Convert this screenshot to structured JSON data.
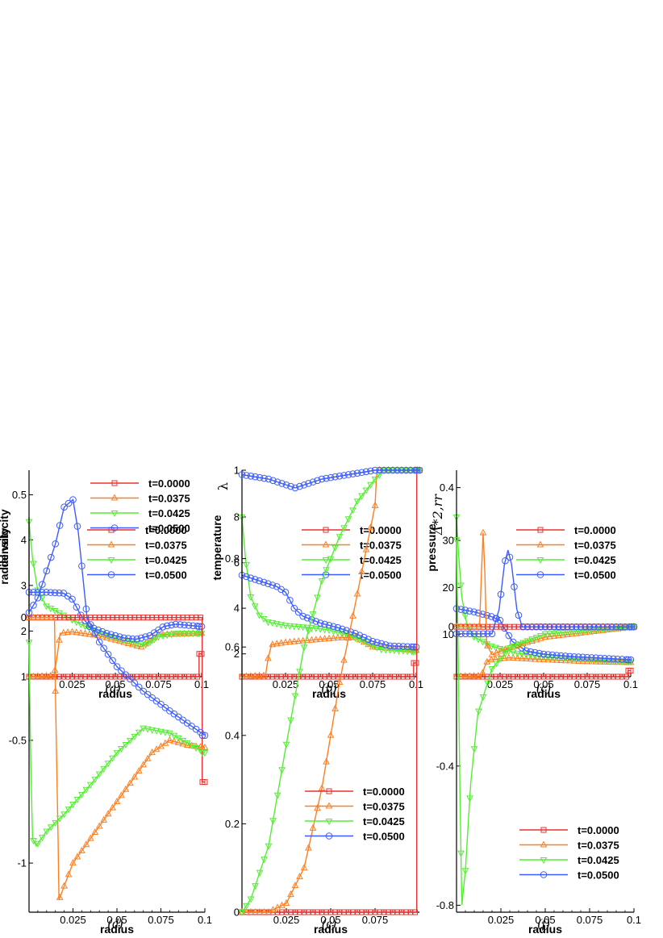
{
  "colors": {
    "t0": "#e8322f",
    "t1": "#ff7f1f",
    "t2": "#55ee33",
    "t3": "#3d5cff"
  },
  "chart_data": [
    {
      "panel": "a",
      "type": "line",
      "caption": "(a)",
      "xlabel": "radius",
      "ylabel": "density",
      "xlim": [
        0,
        0.1
      ],
      "ylim": [
        1,
        4.5
      ],
      "xticks": [
        0.025,
        0.05,
        0.075,
        0.1
      ],
      "xtick_labels": [
        "0.025",
        "0.05",
        "0.075",
        "0.1"
      ],
      "yticks": [
        1,
        2,
        3,
        4
      ],
      "ytick_labels": [
        "1",
        "2",
        "3",
        "4"
      ],
      "legend": {
        "position": "top-right",
        "entries": [
          "t=0.0000",
          "t=0.0375",
          "t=0.0425",
          "t=0.0500"
        ]
      },
      "series": [
        {
          "name": "t=0.0000",
          "marker": "square",
          "x": [
            0,
            0.0985,
            0.0985,
            0.1
          ],
          "y": [
            1,
            1,
            1.5,
            1.5
          ]
        },
        {
          "name": "t=0.0375",
          "marker": "triangle-up",
          "x": [
            0,
            0.0145,
            0.0165,
            0.018,
            0.025,
            0.04,
            0.05,
            0.065,
            0.075,
            0.1
          ],
          "y": [
            1,
            1.02,
            1.5,
            1.95,
            1.98,
            1.9,
            1.8,
            1.65,
            1.92,
            1.95
          ]
        },
        {
          "name": "t=0.0425",
          "marker": "triangle-down",
          "x": [
            0,
            0.002,
            0.005,
            0.01,
            0.02,
            0.03,
            0.04,
            0.05,
            0.06,
            0.068,
            0.075,
            0.085,
            0.1
          ],
          "y": [
            4.4,
            3.6,
            2.9,
            2.55,
            2.35,
            2.15,
            1.98,
            1.85,
            1.75,
            1.7,
            1.88,
            1.95,
            1.95
          ]
        },
        {
          "name": "t=0.0500",
          "marker": "circle",
          "x": [
            0,
            0.01,
            0.02,
            0.025,
            0.03,
            0.035,
            0.045,
            0.055,
            0.062,
            0.07,
            0.078,
            0.085,
            0.1
          ],
          "y": [
            2.85,
            2.85,
            2.83,
            2.7,
            2.35,
            2.1,
            1.95,
            1.85,
            1.82,
            1.9,
            2.1,
            2.15,
            2.1
          ]
        }
      ]
    },
    {
      "panel": "b",
      "type": "line",
      "caption": "(b)",
      "xlabel": "radius",
      "ylabel": "temperature",
      "xlim": [
        0,
        0.1
      ],
      "ylim": [
        1,
        8
      ],
      "xticks": [
        0.025,
        0.05,
        0.075,
        0.1
      ],
      "xtick_labels": [
        "0.025",
        "0.05",
        "0.075",
        "0.1"
      ],
      "yticks": [
        2,
        4,
        6,
        8
      ],
      "ytick_labels": [
        "2",
        "4",
        "6",
        "8"
      ],
      "legend": {
        "position": "top-right",
        "entries": [
          "t=0.0000",
          "t=0.0375",
          "t=0.0425",
          "t=0.0500"
        ]
      },
      "series": [
        {
          "name": "t=0.0000",
          "marker": "square",
          "x": [
            0,
            0.0985,
            0.0985,
            0.1
          ],
          "y": [
            1,
            1,
            1.6,
            1.6
          ]
        },
        {
          "name": "t=0.0375",
          "marker": "triangle-up",
          "x": [
            0,
            0.0135,
            0.015,
            0.017,
            0.025,
            0.04,
            0.055,
            0.065,
            0.075,
            0.1
          ],
          "y": [
            1,
            1.05,
            1.8,
            2.4,
            2.5,
            2.6,
            2.7,
            2.72,
            2.3,
            2.15
          ]
        },
        {
          "name": "t=0.0425",
          "marker": "triangle-down",
          "x": [
            0,
            0.002,
            0.005,
            0.01,
            0.015,
            0.025,
            0.04,
            0.05,
            0.06,
            0.07,
            0.08,
            0.1
          ],
          "y": [
            8,
            6.2,
            4.5,
            3.7,
            3.4,
            3.25,
            3.15,
            3.05,
            2.85,
            2.55,
            2.2,
            2.1
          ]
        },
        {
          "name": "t=0.0500",
          "marker": "circle",
          "x": [
            0,
            0.01,
            0.02,
            0.025,
            0.03,
            0.035,
            0.045,
            0.055,
            0.065,
            0.075,
            0.085,
            0.1
          ],
          "y": [
            5.45,
            5.2,
            4.95,
            4.7,
            4.0,
            3.65,
            3.35,
            3.15,
            2.9,
            2.55,
            2.35,
            2.3
          ]
        }
      ]
    },
    {
      "panel": "c",
      "type": "line",
      "caption": "(c)",
      "xlabel": "radius",
      "ylabel": "pressure",
      "xlim": [
        0,
        0.1
      ],
      "ylim": [
        1,
        35
      ],
      "xticks": [
        0.025,
        0.05,
        0.075,
        0.1
      ],
      "xtick_labels": [
        "0.025",
        "0.05",
        "0.075",
        "0.1"
      ],
      "yticks": [
        10,
        20,
        30
      ],
      "ytick_labels": [
        "10",
        "20",
        "30"
      ],
      "legend": {
        "position": "top-right",
        "entries": [
          "t=0.0000",
          "t=0.0375",
          "t=0.0425",
          "t=0.0500"
        ]
      },
      "series": [
        {
          "name": "t=0.0000",
          "marker": "square",
          "x": [
            0,
            0.0985,
            0.0985,
            0.1
          ],
          "y": [
            1,
            1,
            2.3,
            2.3
          ]
        },
        {
          "name": "t=0.0375",
          "marker": "triangle-up",
          "x": [
            0,
            0.0145,
            0.016,
            0.018,
            0.03,
            0.05,
            0.075,
            0.1
          ],
          "y": [
            1,
            1.2,
            3,
            4.5,
            5,
            4.6,
            4.2,
            4
          ]
        },
        {
          "name": "t=0.0425",
          "marker": "triangle-down",
          "x": [
            0,
            0.001,
            0.003,
            0.006,
            0.01,
            0.02,
            0.035,
            0.05,
            0.07,
            0.1
          ],
          "y": [
            35,
            28,
            18,
            12,
            9.5,
            7.5,
            6,
            5.3,
            4.8,
            4.2
          ]
        },
        {
          "name": "t=0.0500",
          "marker": "circle",
          "x": [
            0,
            0.01,
            0.02,
            0.025,
            0.028,
            0.032,
            0.04,
            0.05,
            0.065,
            0.08,
            0.1
          ],
          "y": [
            15.5,
            14.8,
            13.8,
            13,
            11,
            8.5,
            6.5,
            5.8,
            5.3,
            5,
            4.6
          ]
        }
      ]
    },
    {
      "panel": "d",
      "type": "line",
      "caption": "(d)",
      "xlabel": "radius",
      "ylabel": "radial velocity",
      "xlim": [
        0,
        0.1
      ],
      "ylim": [
        -1.2,
        0.6
      ],
      "xticks": [
        0.025,
        0.05,
        0.075,
        0.1
      ],
      "xtick_labels": [
        "0.025",
        "0.05",
        "0.075",
        "0.1"
      ],
      "yticks": [
        -1,
        -0.5,
        0,
        0.5
      ],
      "ytick_labels": [
        "-1",
        "-0.5",
        "0",
        "0.5"
      ],
      "legend": {
        "position": "top-right",
        "entries": [
          "t=0.0000",
          "t=0.0375",
          "t=0.0425",
          "t=0.0500"
        ]
      },
      "series": [
        {
          "name": "t=0.0000",
          "marker": "square",
          "x": [
            0,
            0.0985,
            0.0985,
            0.1
          ],
          "y": [
            0,
            0,
            -0.67,
            -0.67
          ]
        },
        {
          "name": "t=0.0375",
          "marker": "triangle-up",
          "x": [
            0,
            0.0145,
            0.015,
            0.0165,
            0.017,
            0.025,
            0.04,
            0.055,
            0.07,
            0.08,
            0.09,
            0.1
          ],
          "y": [
            0,
            0,
            -0.3,
            -0.9,
            -1.15,
            -1.0,
            -0.85,
            -0.7,
            -0.55,
            -0.5,
            -0.52,
            -0.53
          ]
        },
        {
          "name": "t=0.0425",
          "marker": "triangle-down",
          "x": [
            0,
            0.001,
            0.002,
            0.004,
            0.01,
            0.02,
            0.035,
            0.05,
            0.065,
            0.08,
            0.1
          ],
          "y": [
            -0.1,
            -0.6,
            -0.9,
            -0.93,
            -0.87,
            -0.8,
            -0.68,
            -0.55,
            -0.45,
            -0.47,
            -0.55
          ]
        },
        {
          "name": "t=0.0500",
          "marker": "circle",
          "x": [
            0,
            0.005,
            0.015,
            0.02,
            0.025,
            0.028,
            0.033,
            0.04,
            0.05,
            0.065,
            0.08,
            0.1
          ],
          "y": [
            0.02,
            0.08,
            0.3,
            0.45,
            0.48,
            0.35,
            0.0,
            -0.1,
            -0.2,
            -0.3,
            -0.38,
            -0.48
          ]
        }
      ]
    },
    {
      "panel": "e",
      "type": "line",
      "caption": "(e)",
      "xlabel": "radius",
      "ylabel": "λ",
      "xlim": [
        0,
        0.1
      ],
      "ylim": [
        0,
        1
      ],
      "xticks": [
        0.025,
        0.05,
        0.075
      ],
      "xtick_labels": [
        "0.025",
        "0.05",
        "0.075"
      ],
      "yticks": [
        0,
        0.2,
        0.4,
        0.6,
        0.8,
        1
      ],
      "ytick_labels": [
        "0",
        "0.2",
        "0.4",
        "0.6",
        "0.8",
        "1"
      ],
      "legend": {
        "position": "bottom-right",
        "entries": [
          "t=0.0000",
          "t=0.0375",
          "t=0.0425",
          "t=0.0500"
        ]
      },
      "series": [
        {
          "name": "t=0.0000",
          "marker": "square",
          "x": [
            0,
            0.0985,
            0.0985,
            0.1
          ],
          "y": [
            0,
            0,
            1,
            1
          ]
        },
        {
          "name": "t=0.0375",
          "marker": "triangle-up",
          "x": [
            0,
            0.015,
            0.025,
            0.035,
            0.045,
            0.055,
            0.065,
            0.075,
            0.076,
            0.1
          ],
          "y": [
            0,
            0.0,
            0.02,
            0.1,
            0.28,
            0.52,
            0.72,
            0.92,
            1,
            1
          ]
        },
        {
          "name": "t=0.0425",
          "marker": "triangle-down",
          "x": [
            0,
            0.005,
            0.015,
            0.025,
            0.035,
            0.045,
            0.055,
            0.065,
            0.075,
            0.08,
            0.1
          ],
          "y": [
            0,
            0.03,
            0.15,
            0.38,
            0.6,
            0.75,
            0.85,
            0.93,
            0.98,
            1,
            1
          ]
        },
        {
          "name": "t=0.0500",
          "marker": "circle",
          "x": [
            0,
            0.015,
            0.03,
            0.045,
            0.06,
            0.075,
            0.1
          ],
          "y": [
            0.99,
            0.98,
            0.96,
            0.98,
            0.99,
            1,
            1
          ]
        }
      ]
    },
    {
      "panel": "f",
      "type": "line",
      "caption": "(f)",
      "xlabel": "radius",
      "ylabel": "Δ*2,rr",
      "xlim": [
        0,
        0.1
      ],
      "ylim": [
        -0.82,
        0.45
      ],
      "xticks": [
        0.025,
        0.05,
        0.075,
        0.1
      ],
      "xtick_labels": [
        "0.025",
        "0.05",
        "0.075",
        "0.1"
      ],
      "yticks": [
        -0.8,
        -0.4,
        0,
        0.4
      ],
      "ytick_labels": [
        "-0.8",
        "-0.4",
        "0",
        "0.4"
      ],
      "legend": {
        "position": "bottom-right",
        "entries": [
          "t=0.0000",
          "t=0.0375",
          "t=0.0425",
          "t=0.0500"
        ]
      },
      "series": [
        {
          "name": "t=0.0000",
          "marker": "square",
          "x": [
            0,
            0.1
          ],
          "y": [
            0,
            0
          ]
        },
        {
          "name": "t=0.0375",
          "marker": "triangle-up",
          "x": [
            0,
            0.013,
            0.014,
            0.015,
            0.016,
            0.017,
            0.02,
            0.03,
            0.05,
            0.1
          ],
          "y": [
            0,
            0,
            0.15,
            0.27,
            0.15,
            -0.05,
            -0.08,
            -0.06,
            -0.03,
            0
          ]
        },
        {
          "name": "t=0.0425",
          "marker": "triangle-down",
          "x": [
            0,
            0.001,
            0.002,
            0.003,
            0.005,
            0.008,
            0.012,
            0.02,
            0.03,
            0.05,
            0.1
          ],
          "y": [
            0.25,
            -0.1,
            -0.5,
            -0.8,
            -0.7,
            -0.45,
            -0.25,
            -0.12,
            -0.06,
            -0.02,
            0
          ]
        },
        {
          "name": "t=0.0500",
          "marker": "circle",
          "x": [
            0,
            0.02,
            0.024,
            0.027,
            0.029,
            0.031,
            0.034,
            0.037,
            0.1
          ],
          "y": [
            -0.02,
            -0.02,
            0.05,
            0.18,
            0.22,
            0.18,
            0.05,
            0,
            0
          ]
        }
      ]
    }
  ]
}
